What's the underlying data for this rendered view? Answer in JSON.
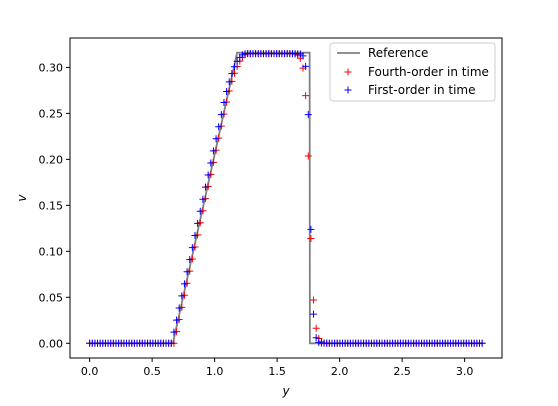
{
  "chart_data": {
    "type": "line",
    "title": "",
    "xlabel": "y",
    "ylabel": "v",
    "xlim": [
      -0.157,
      3.299
    ],
    "ylim": [
      -0.016,
      0.332
    ],
    "xticks": [
      0.0,
      0.5,
      1.0,
      1.5,
      2.0,
      2.5,
      3.0
    ],
    "xtick_labels": [
      "0.0",
      "0.5",
      "1.0",
      "1.5",
      "2.0",
      "2.5",
      "3.0"
    ],
    "yticks": [
      0.0,
      0.05,
      0.1,
      0.15,
      0.2,
      0.25,
      0.3
    ],
    "ytick_labels": [
      "0.00",
      "0.05",
      "0.10",
      "0.15",
      "0.20",
      "0.25",
      "0.30"
    ],
    "grid": false,
    "legend_position": "top-right",
    "reference": {
      "name": "Reference",
      "color": "#808080",
      "x": [
        0.0,
        0.666,
        1.18,
        1.76,
        1.762,
        3.14
      ],
      "y": [
        0.0,
        0.0,
        0.316,
        0.316,
        0.0,
        0.0
      ]
    },
    "scatter_series": [
      {
        "name": "Fourth-order in time",
        "color": "#ff0000",
        "marker": "+",
        "x_min": 0.0,
        "x_max": 3.14,
        "n": 150,
        "plateau": 0.315,
        "ramp_start": 0.675,
        "ramp_end": 1.18,
        "shock": 1.76,
        "shock_width": 0.018
      },
      {
        "name": "First-order in time",
        "color": "#0000ff",
        "marker": "+",
        "x_min": 0.0,
        "x_max": 3.14,
        "n": 150,
        "plateau": 0.315,
        "ramp_start": 0.655,
        "ramp_end": 1.16,
        "shock": 1.765,
        "shock_width": 0.012
      }
    ]
  }
}
